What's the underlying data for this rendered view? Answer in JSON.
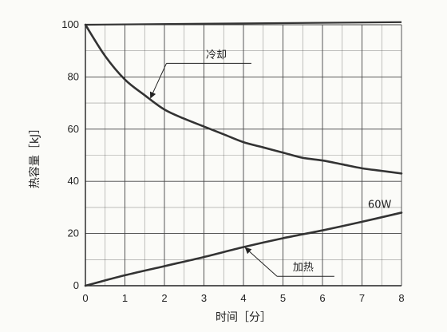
{
  "chart_data": {
    "type": "line",
    "title": "",
    "xlabel": "时间［分］",
    "ylabel": "热容量［kJ］",
    "xlim": [
      0,
      8
    ],
    "ylim": [
      0,
      100
    ],
    "x_ticks": [
      "0",
      "1",
      "2",
      "3",
      "4",
      "5",
      "6",
      "7",
      "8"
    ],
    "y_ticks": [
      "0",
      "20",
      "40",
      "60",
      "80",
      "100"
    ],
    "x_tick_values": [
      0,
      1,
      2,
      3,
      4,
      5,
      6,
      7,
      8
    ],
    "y_tick_values": [
      0,
      20,
      40,
      60,
      80,
      100
    ],
    "x_minor_step": 0.5,
    "y_minor_step": 10,
    "grid": true,
    "line_color": "#333333",
    "grid_color": "#444444",
    "series": [
      {
        "name": "冷却",
        "x": [
          0,
          0.5,
          1,
          1.5,
          2,
          2.5,
          3,
          3.5,
          4,
          4.5,
          5,
          5.5,
          6,
          6.5,
          7,
          7.5,
          8
        ],
        "y": [
          100,
          88,
          79,
          73,
          67.5,
          64,
          61,
          58,
          55,
          53,
          51,
          49,
          48,
          46.5,
          45,
          44,
          43
        ]
      },
      {
        "name": "加热",
        "x": [
          0,
          1,
          2,
          3,
          4,
          5,
          6,
          7,
          8
        ],
        "y": [
          0,
          4,
          7.5,
          11,
          14.8,
          18.2,
          21.2,
          24.5,
          28
        ]
      }
    ],
    "top_line": {
      "x": [
        0,
        8
      ],
      "y": [
        100,
        101
      ]
    },
    "annotations": [
      {
        "text": "冷却",
        "arrow_to": {
          "x": 1.65,
          "y": 72
        },
        "leader_from": {
          "x": 2.05,
          "y": 85.2
        },
        "text_at": {
          "x": 3.05,
          "y": 87.2
        },
        "leader_end_x": 4.2
      },
      {
        "text": "加热",
        "arrow_to": {
          "x": 4.05,
          "y": 14.5
        },
        "leader_from": {
          "x": 4.85,
          "y": 3.6
        },
        "text_at": {
          "x": 5.25,
          "y": 5.8
        },
        "leader_end_x": 6.3
      },
      {
        "text": "60W",
        "text_at": {
          "x": 7.15,
          "y": 29.8
        }
      }
    ]
  }
}
